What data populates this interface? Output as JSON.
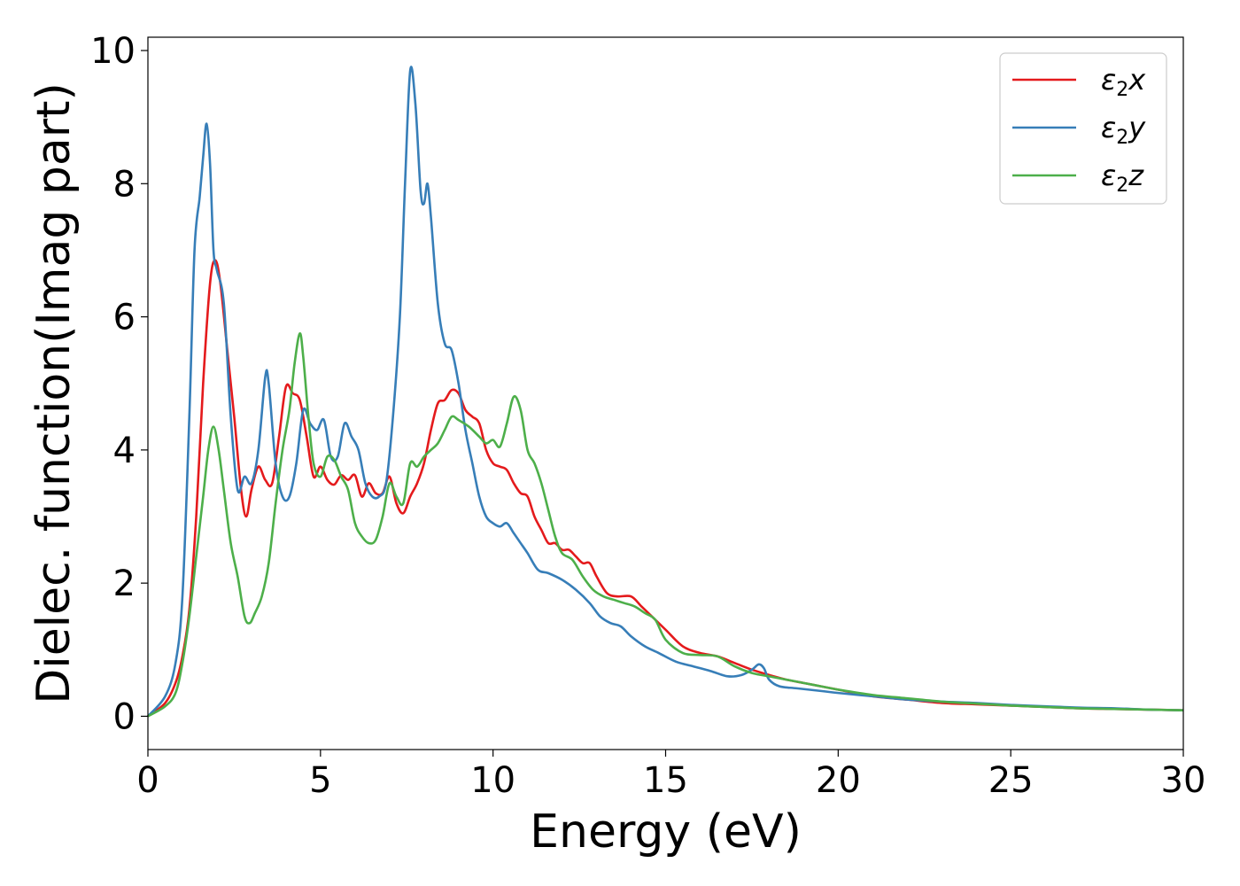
{
  "chart_data": {
    "type": "line",
    "xlabel": "Energy (eV)",
    "ylabel": "Dielec. function(Imag part)",
    "xlim": [
      0,
      30
    ],
    "ylim": [
      -0.5,
      10.2
    ],
    "xticks": [
      0,
      5,
      10,
      15,
      20,
      25,
      30
    ],
    "yticks": [
      0,
      2,
      4,
      6,
      8,
      10
    ],
    "xtick_labels": [
      "0",
      "5",
      "10",
      "15",
      "20",
      "25",
      "30"
    ],
    "ytick_labels": [
      "0",
      "2",
      "4",
      "6",
      "8",
      "10"
    ],
    "grid": false,
    "legend_position": "top-right",
    "series": [
      {
        "name": "ε₂x",
        "label_base": "ε",
        "label_sub": "2",
        "label_var": "x",
        "color": "#e41a1c",
        "x": [
          0,
          0.5,
          0.8,
          1.0,
          1.2,
          1.4,
          1.6,
          1.8,
          1.95,
          2.1,
          2.3,
          2.5,
          2.7,
          2.85,
          3.0,
          3.2,
          3.4,
          3.6,
          3.8,
          4.0,
          4.2,
          4.4,
          4.6,
          4.8,
          5.0,
          5.2,
          5.4,
          5.6,
          5.8,
          6.0,
          6.2,
          6.4,
          6.6,
          6.8,
          7.0,
          7.2,
          7.4,
          7.6,
          7.8,
          8.0,
          8.2,
          8.4,
          8.6,
          8.8,
          9.0,
          9.2,
          9.4,
          9.6,
          9.8,
          10.0,
          10.2,
          10.4,
          10.6,
          10.8,
          11.0,
          11.2,
          11.4,
          11.6,
          11.8,
          12.0,
          12.2,
          12.4,
          12.6,
          12.8,
          13.0,
          13.3,
          13.6,
          14.0,
          14.3,
          14.6,
          15.0,
          15.5,
          16.0,
          16.5,
          17.0,
          17.5,
          18.0,
          18.5,
          19.0,
          19.5,
          20.0,
          21.0,
          22.0,
          23.0,
          24.0,
          25.0,
          26.0,
          27.0,
          28.0,
          29.0,
          30.0
        ],
        "y": [
          0,
          0.2,
          0.5,
          0.9,
          1.6,
          3.0,
          5.0,
          6.5,
          6.85,
          6.5,
          5.5,
          4.5,
          3.4,
          3.0,
          3.4,
          3.75,
          3.55,
          3.5,
          4.2,
          4.95,
          4.85,
          4.75,
          4.2,
          3.6,
          3.75,
          3.55,
          3.48,
          3.62,
          3.55,
          3.62,
          3.3,
          3.5,
          3.35,
          3.35,
          3.6,
          3.2,
          3.05,
          3.3,
          3.5,
          3.8,
          4.3,
          4.7,
          4.75,
          4.9,
          4.85,
          4.6,
          4.5,
          4.4,
          4.0,
          3.8,
          3.75,
          3.7,
          3.5,
          3.35,
          3.3,
          3.0,
          2.8,
          2.6,
          2.6,
          2.5,
          2.5,
          2.4,
          2.3,
          2.3,
          2.1,
          1.85,
          1.8,
          1.8,
          1.65,
          1.5,
          1.3,
          1.05,
          0.95,
          0.9,
          0.8,
          0.7,
          0.62,
          0.55,
          0.5,
          0.45,
          0.4,
          0.3,
          0.25,
          0.2,
          0.18,
          0.16,
          0.14,
          0.12,
          0.11,
          0.1,
          0.09
        ]
      },
      {
        "name": "ε₂y",
        "label_base": "ε",
        "label_sub": "2",
        "label_var": "y",
        "color": "#377eb8",
        "x": [
          0,
          0.5,
          0.8,
          1.0,
          1.2,
          1.35,
          1.5,
          1.6,
          1.7,
          1.8,
          1.9,
          2.0,
          2.2,
          2.4,
          2.6,
          2.8,
          3.0,
          3.2,
          3.4,
          3.5,
          3.7,
          3.9,
          4.1,
          4.3,
          4.5,
          4.7,
          4.9,
          5.1,
          5.3,
          5.5,
          5.7,
          5.9,
          6.1,
          6.3,
          6.5,
          6.7,
          6.9,
          7.1,
          7.3,
          7.45,
          7.6,
          7.75,
          7.9,
          8.0,
          8.1,
          8.2,
          8.4,
          8.6,
          8.8,
          9.0,
          9.2,
          9.4,
          9.6,
          9.8,
          10.0,
          10.2,
          10.4,
          10.6,
          10.8,
          11.0,
          11.3,
          11.6,
          12.0,
          12.4,
          12.8,
          13.1,
          13.4,
          13.7,
          14.0,
          14.4,
          14.8,
          15.3,
          15.8,
          16.3,
          16.8,
          17.2,
          17.5,
          17.7,
          17.85,
          18.0,
          18.3,
          18.8,
          19.5,
          20.0,
          21.0,
          22.0,
          23.0,
          24.0,
          25.0,
          26.0,
          27.0,
          28.0,
          29.0,
          30.0
        ],
        "y": [
          0,
          0.3,
          0.8,
          1.8,
          4.5,
          7.0,
          7.8,
          8.4,
          8.9,
          8.3,
          7.0,
          6.7,
          6.2,
          4.5,
          3.4,
          3.6,
          3.5,
          4.0,
          5.1,
          5.0,
          3.8,
          3.3,
          3.3,
          3.8,
          4.6,
          4.4,
          4.3,
          4.45,
          3.9,
          3.9,
          4.4,
          4.2,
          4.0,
          3.5,
          3.3,
          3.3,
          3.5,
          4.5,
          6.0,
          8.0,
          9.7,
          9.2,
          7.9,
          7.7,
          8.0,
          7.5,
          6.2,
          5.6,
          5.5,
          5.0,
          4.3,
          3.8,
          3.3,
          3.0,
          2.9,
          2.85,
          2.9,
          2.75,
          2.6,
          2.45,
          2.2,
          2.15,
          2.05,
          1.9,
          1.7,
          1.5,
          1.4,
          1.35,
          1.2,
          1.05,
          0.95,
          0.82,
          0.75,
          0.68,
          0.6,
          0.62,
          0.7,
          0.78,
          0.72,
          0.55,
          0.45,
          0.42,
          0.38,
          0.35,
          0.3,
          0.25,
          0.22,
          0.2,
          0.17,
          0.15,
          0.13,
          0.12,
          0.1,
          0.09
        ]
      },
      {
        "name": "ε₂z",
        "label_base": "ε",
        "label_sub": "2",
        "label_var": "z",
        "color": "#4daf4a",
        "x": [
          0,
          0.5,
          0.8,
          1.0,
          1.2,
          1.4,
          1.6,
          1.75,
          1.9,
          2.05,
          2.2,
          2.4,
          2.6,
          2.8,
          2.95,
          3.1,
          3.3,
          3.5,
          3.7,
          3.9,
          4.1,
          4.25,
          4.4,
          4.5,
          4.65,
          4.8,
          5.0,
          5.2,
          5.4,
          5.6,
          5.8,
          6.0,
          6.2,
          6.4,
          6.6,
          6.8,
          7.0,
          7.2,
          7.4,
          7.6,
          7.8,
          8.0,
          8.2,
          8.4,
          8.6,
          8.8,
          9.0,
          9.3,
          9.6,
          9.8,
          10.0,
          10.2,
          10.4,
          10.6,
          10.8,
          11.0,
          11.2,
          11.4,
          11.6,
          11.8,
          12.0,
          12.3,
          12.6,
          12.9,
          13.2,
          13.5,
          13.8,
          14.1,
          14.4,
          14.7,
          15.0,
          15.5,
          16.0,
          16.5,
          17.0,
          17.5,
          18.0,
          18.5,
          19.0,
          19.5,
          20.0,
          21.0,
          22.0,
          23.0,
          24.0,
          25.0,
          26.0,
          27.0,
          28.0,
          29.0,
          30.0
        ],
        "y": [
          0,
          0.15,
          0.35,
          0.8,
          1.5,
          2.4,
          3.3,
          4.0,
          4.35,
          4.0,
          3.4,
          2.6,
          2.1,
          1.5,
          1.4,
          1.55,
          1.8,
          2.3,
          3.2,
          4.0,
          4.6,
          5.3,
          5.75,
          5.4,
          4.5,
          3.8,
          3.6,
          3.9,
          3.85,
          3.6,
          3.4,
          2.9,
          2.7,
          2.6,
          2.65,
          3.0,
          3.5,
          3.3,
          3.2,
          3.8,
          3.75,
          3.9,
          4.0,
          4.1,
          4.3,
          4.5,
          4.45,
          4.35,
          4.2,
          4.1,
          4.15,
          4.05,
          4.4,
          4.8,
          4.6,
          4.0,
          3.8,
          3.5,
          3.1,
          2.7,
          2.45,
          2.35,
          2.1,
          1.9,
          1.8,
          1.75,
          1.7,
          1.65,
          1.55,
          1.45,
          1.15,
          0.95,
          0.92,
          0.9,
          0.75,
          0.65,
          0.6,
          0.55,
          0.5,
          0.45,
          0.4,
          0.32,
          0.27,
          0.22,
          0.19,
          0.16,
          0.14,
          0.12,
          0.11,
          0.1,
          0.09
        ]
      }
    ]
  }
}
